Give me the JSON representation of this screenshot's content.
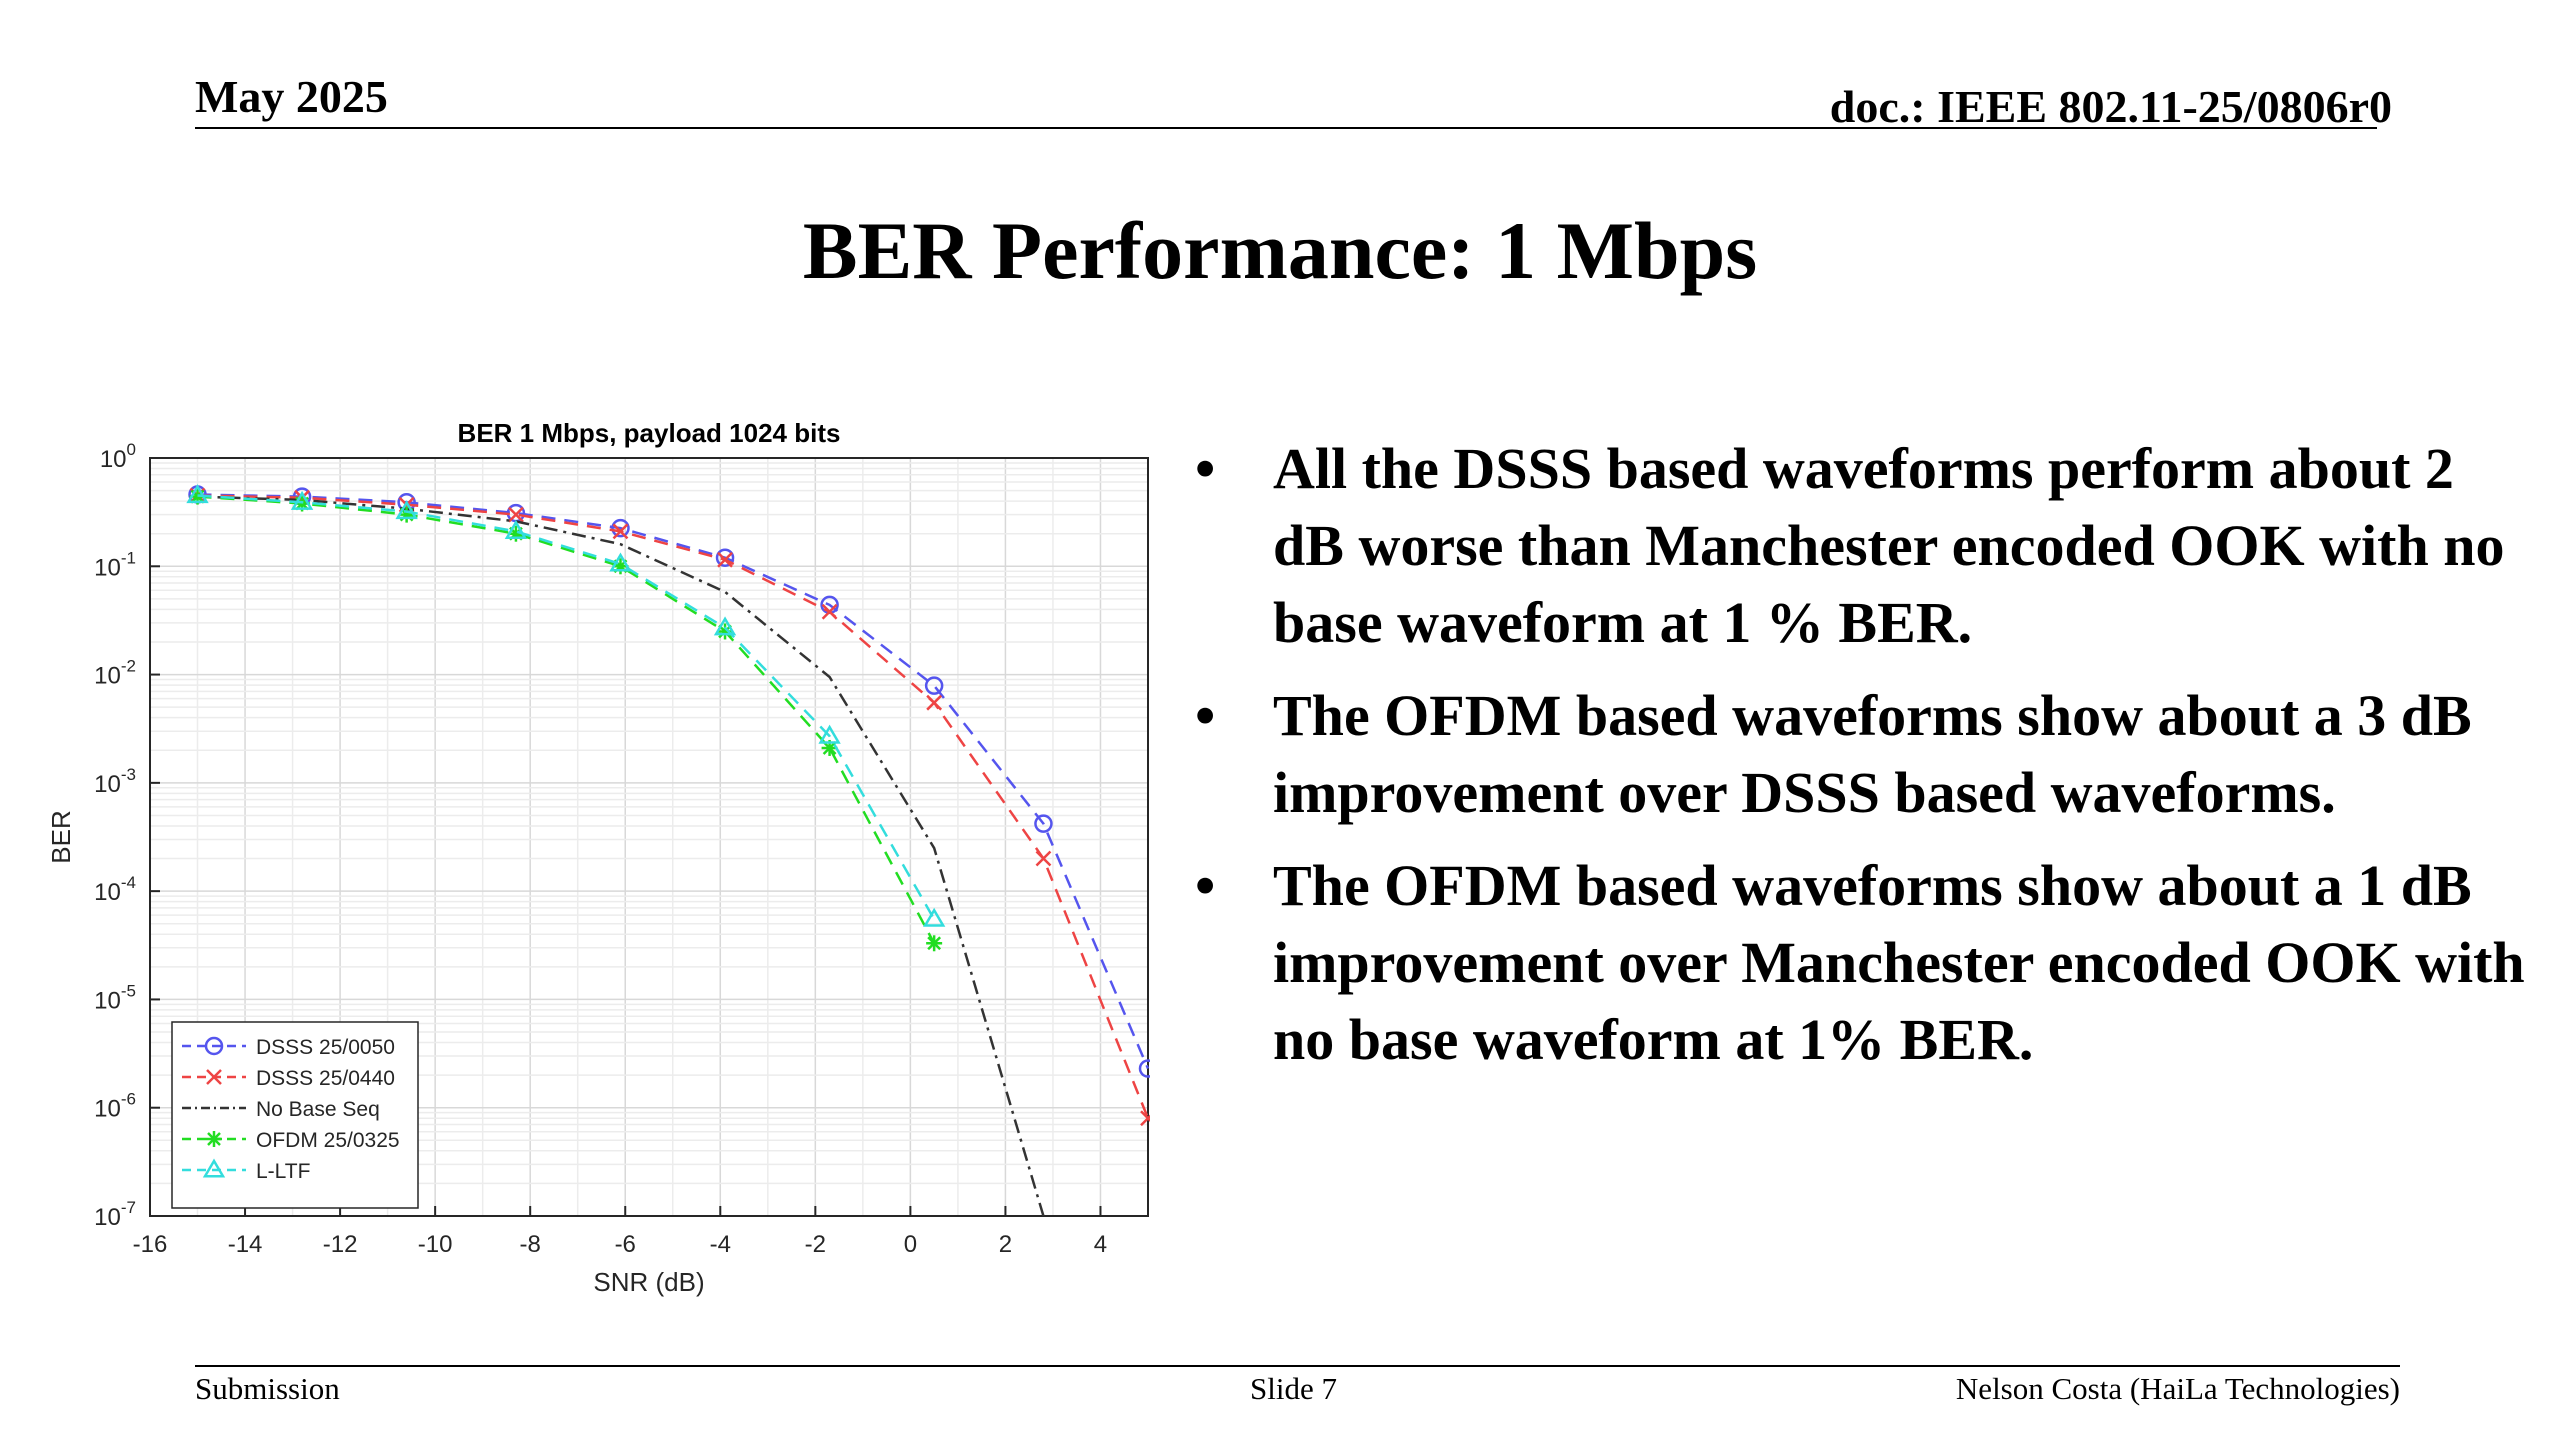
{
  "header": {
    "date": "May 2025",
    "doc_id": "doc.: IEEE 802.11-25/0806r0"
  },
  "slide_title": "BER Performance: 1 Mbps",
  "bullets": [
    "All the DSSS based waveforms perform about 2 dB worse than Manchester encoded OOK with no base waveform at 1 % BER.",
    "The OFDM based waveforms show about a 3 dB improvement over DSSS based waveforms.",
    "The OFDM based waveforms show about a 1 dB improvement over Manchester encoded OOK with no base waveform at 1% BER."
  ],
  "bullet_symbol": "•",
  "footer": {
    "left": "Submission",
    "center": "Slide 7",
    "right": "Nelson Costa (HaiLa Technologies)"
  },
  "chart_data": {
    "type": "line",
    "title": "BER 1 Mbps, payload 1024 bits",
    "xlabel": "SNR (dB)",
    "ylabel": "BER",
    "xlim": [
      -16,
      5
    ],
    "ylim": [
      1e-07,
      1
    ],
    "y_scale": "log",
    "grid": true,
    "legend_position": "bottom-left",
    "x_ticks": [
      "-16",
      "-14",
      "-12",
      "-10",
      "-8",
      "-6",
      "-4",
      "-2",
      "0",
      "2",
      "4"
    ],
    "y_tick_exponents": [
      "0",
      "-1",
      "-2",
      "-3",
      "-4",
      "-5",
      "-6",
      "-7"
    ],
    "y_tick_base": "10",
    "series": [
      {
        "name": "DSSS 25/0050",
        "color": "#5555ee",
        "marker": "circle",
        "dash": "dashed",
        "x": [
          -15,
          -12.8,
          -10.6,
          -8.3,
          -6.1,
          -3.9,
          -1.7,
          0.5,
          2.8,
          5.0
        ],
        "y": [
          0.46,
          0.44,
          0.39,
          0.31,
          0.225,
          0.12,
          0.044,
          0.0079,
          0.00042,
          2.3e-06
        ]
      },
      {
        "name": "DSSS 25/0440",
        "color": "#ee4444",
        "marker": "x",
        "dash": "dashed",
        "x": [
          -15,
          -12.8,
          -10.6,
          -8.3,
          -6.1,
          -3.9,
          -1.7,
          0.5,
          2.8,
          5.0
        ],
        "y": [
          0.45,
          0.43,
          0.37,
          0.3,
          0.21,
          0.115,
          0.038,
          0.0055,
          0.0002,
          8e-07
        ]
      },
      {
        "name": "No Base Seq",
        "color": "#333333",
        "marker": "none",
        "dash": "dashdot",
        "x": [
          -15,
          -12.8,
          -10.6,
          -8.3,
          -6.1,
          -3.9,
          -1.7,
          0.5,
          2.8
        ],
        "y": [
          0.44,
          0.41,
          0.34,
          0.26,
          0.16,
          0.058,
          0.0095,
          0.00025,
          1e-07
        ]
      },
      {
        "name": "OFDM 25/0325",
        "color": "#22dd22",
        "marker": "star",
        "dash": "dashed",
        "x": [
          -15,
          -12.8,
          -10.6,
          -8.3,
          -6.1,
          -3.9,
          -1.7,
          0.5
        ],
        "y": [
          0.44,
          0.38,
          0.3,
          0.2,
          0.1,
          0.025,
          0.0021,
          3.3e-05
        ]
      },
      {
        "name": "L-LTF",
        "color": "#33dddd",
        "marker": "triangle",
        "dash": "dashed",
        "x": [
          -15,
          -12.8,
          -10.6,
          -8.3,
          -6.1,
          -3.9,
          -1.7,
          0.5
        ],
        "y": [
          0.45,
          0.39,
          0.32,
          0.21,
          0.105,
          0.027,
          0.0027,
          5.5e-05
        ]
      }
    ]
  }
}
